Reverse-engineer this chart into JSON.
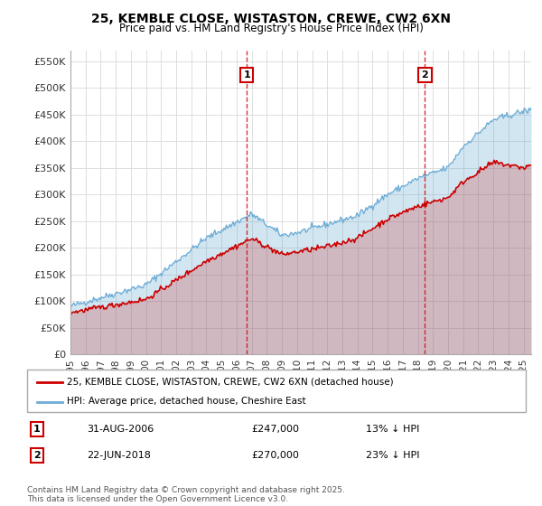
{
  "title": "25, KEMBLE CLOSE, WISTASTON, CREWE, CW2 6XN",
  "subtitle": "Price paid vs. HM Land Registry's House Price Index (HPI)",
  "ylabel_ticks": [
    "£0",
    "£50K",
    "£100K",
    "£150K",
    "£200K",
    "£250K",
    "£300K",
    "£350K",
    "£400K",
    "£450K",
    "£500K",
    "£550K"
  ],
  "ytick_values": [
    0,
    50000,
    100000,
    150000,
    200000,
    250000,
    300000,
    350000,
    400000,
    450000,
    500000,
    550000
  ],
  "ylim": [
    0,
    570000
  ],
  "legend_entries": [
    "25, KEMBLE CLOSE, WISTASTON, CREWE, CW2 6XN (detached house)",
    "HPI: Average price, detached house, Cheshire East"
  ],
  "annotation1": {
    "label": "1",
    "date": "31-AUG-2006",
    "price": "£247,000",
    "hpi": "13% ↓ HPI",
    "x_year": 2006.67
  },
  "annotation2": {
    "label": "2",
    "date": "22-JUN-2018",
    "price": "£270,000",
    "hpi": "23% ↓ HPI",
    "x_year": 2018.47
  },
  "footer": "Contains HM Land Registry data © Crown copyright and database right 2025.\nThis data is licensed under the Open Government Licence v3.0.",
  "hpi_color": "#6dadd6",
  "price_color": "#cc0000",
  "annotation_color": "#cc0000",
  "background_color": "#ffffff",
  "grid_color": "#dddddd",
  "xlim_start": 1995,
  "xlim_end": 2025.5
}
